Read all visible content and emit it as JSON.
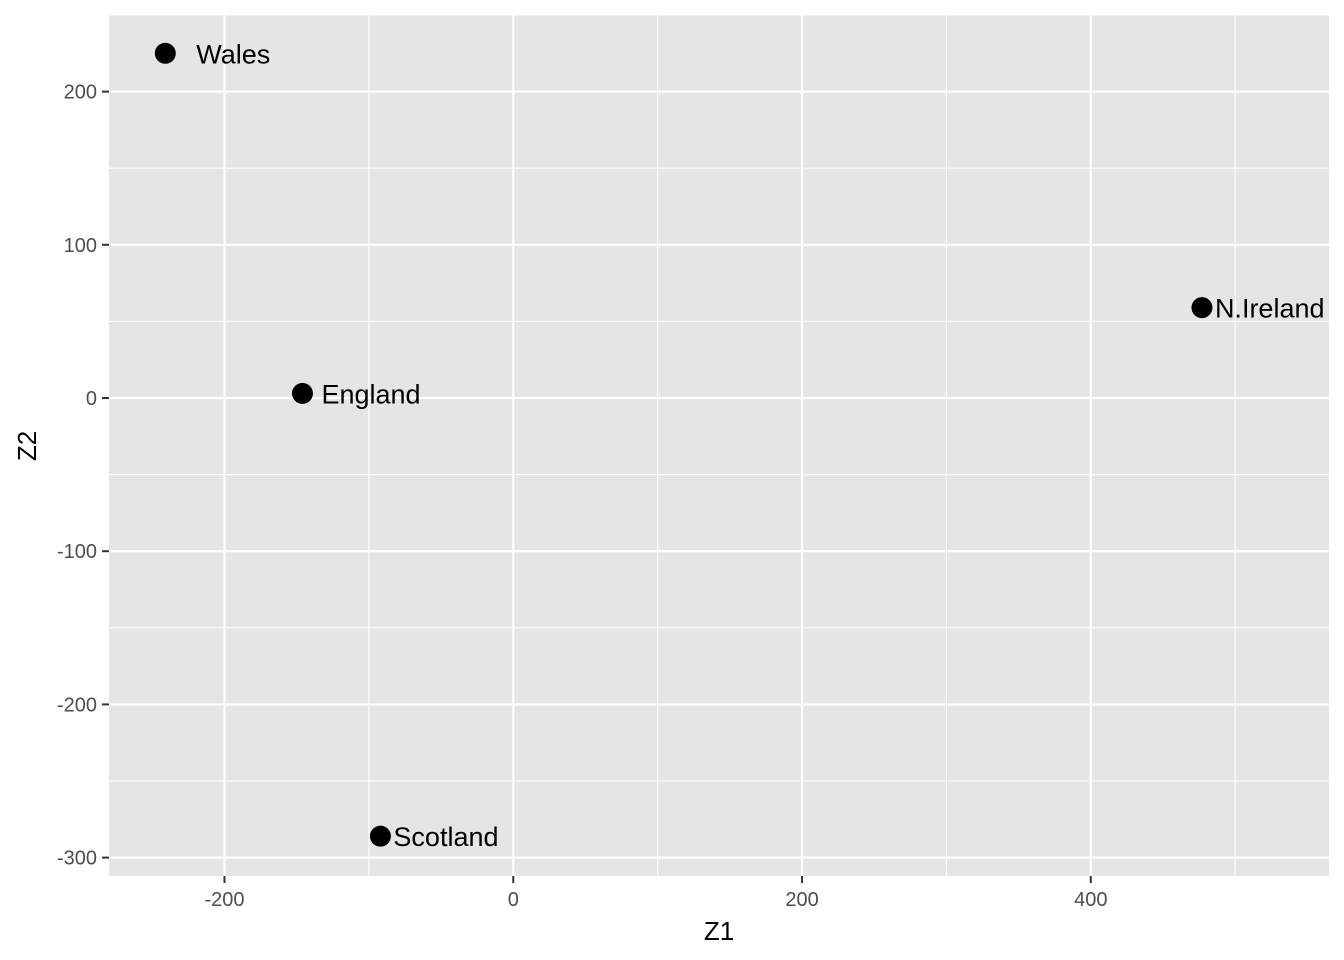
{
  "chart_data": {
    "type": "scatter",
    "title": "",
    "xlabel": "Z1",
    "ylabel": "Z2",
    "xlim": [
      -280,
      565
    ],
    "ylim": [
      -312,
      250
    ],
    "x_ticks": [
      -200,
      0,
      200,
      400
    ],
    "y_ticks": [
      -300,
      -200,
      -100,
      0,
      100,
      200
    ],
    "grid": true,
    "legend": "none",
    "colors": {
      "panel": "#e5e5e5",
      "grid": "#ffffff",
      "point": "#000000",
      "tick_text": "#4d4d4d"
    },
    "points": [
      {
        "label": "Wales",
        "x": -241,
        "y": 225
      },
      {
        "label": "England",
        "x": -146,
        "y": 3
      },
      {
        "label": "Scotland",
        "x": -92,
        "y": -286
      },
      {
        "label": "N.Ireland",
        "x": 477,
        "y": 59
      }
    ]
  }
}
